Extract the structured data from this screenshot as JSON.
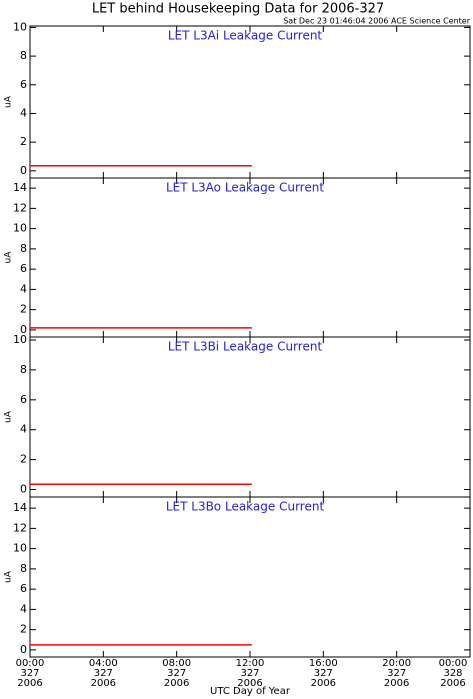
{
  "header": {
    "title": "LET behind Housekeeping Data for 2006-327",
    "subtitle": "Sat Dec 23 01:46:04 2006 ACE Science Center"
  },
  "chart_data": [
    {
      "type": "line",
      "title": "LET L3Ai Leakage Current",
      "ylabel": "uA",
      "xlim": [
        0,
        24
      ],
      "ylim": [
        -0.5,
        10.1
      ],
      "yticks": [
        0,
        2,
        4,
        6,
        8,
        10
      ],
      "x": [
        0,
        12.1
      ],
      "series": [
        {
          "color": "#ff0000",
          "values": [
            0.35,
            0.35
          ]
        }
      ]
    },
    {
      "type": "line",
      "title": "LET L3Ao Leakage Current",
      "ylabel": "uA",
      "xlim": [
        0,
        24
      ],
      "ylim": [
        -0.7,
        15
      ],
      "yticks": [
        0,
        2,
        4,
        6,
        8,
        10,
        12,
        14
      ],
      "x": [
        0,
        12.1
      ],
      "series": [
        {
          "color": "#ff0000",
          "values": [
            0.2,
            0.2
          ]
        }
      ]
    },
    {
      "type": "line",
      "title": "LET L3Bi Leakage Current",
      "ylabel": "uA",
      "xlim": [
        0,
        24
      ],
      "ylim": [
        -0.5,
        10.2
      ],
      "yticks": [
        0,
        2,
        4,
        6,
        8,
        10
      ],
      "x": [
        0,
        12.1
      ],
      "series": [
        {
          "color": "#ff0000",
          "values": [
            0.35,
            0.35
          ]
        }
      ]
    },
    {
      "type": "line",
      "title": "LET L3Bo Leakage Current",
      "ylabel": "uA",
      "xlim": [
        0,
        24
      ],
      "ylim": [
        -0.7,
        15.1
      ],
      "yticks": [
        0,
        2,
        4,
        6,
        8,
        10,
        12,
        14
      ],
      "x": [
        0,
        12.1
      ],
      "series": [
        {
          "color": "#ff0000",
          "values": [
            0.5,
            0.5
          ]
        }
      ],
      "xlabel": "UTC Day of Year",
      "xticks": [
        {
          "value": 0,
          "label": "00:00\n327\n2006"
        },
        {
          "value": 4,
          "label": "04:00\n327\n2006"
        },
        {
          "value": 8,
          "label": "08:00\n327\n2006"
        },
        {
          "value": 12,
          "label": "12:00\n327\n2006"
        },
        {
          "value": 16,
          "label": "16:00\n327\n2006"
        },
        {
          "value": 20,
          "label": "20:00\n327\n2006"
        },
        {
          "value": 24,
          "label": "00:00\n328\n2006"
        }
      ]
    }
  ]
}
